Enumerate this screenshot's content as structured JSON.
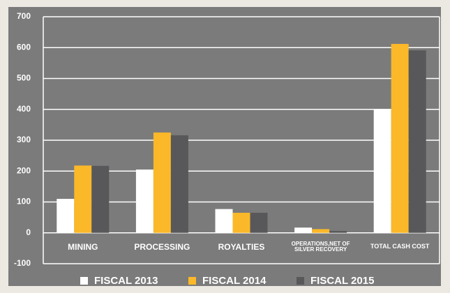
{
  "chart_data": {
    "type": "bar",
    "categories": [
      "MINING",
      "PROCESSING",
      "ROYALTIES",
      "OPERATIONS,NET OF SILVER RECOVERY",
      "TOTAL CASH COST"
    ],
    "series": [
      {
        "name": "FISCAL 2013",
        "color": "#ffffff",
        "values": [
          110,
          205,
          77,
          17,
          400
        ]
      },
      {
        "name": "FISCAL 2014",
        "color": "#fbb829",
        "values": [
          218,
          325,
          65,
          12,
          612
        ]
      },
      {
        "name": "FISCAL 2015",
        "color": "#58585a",
        "values": [
          217,
          316,
          65,
          6,
          591
        ]
      }
    ],
    "ylim": [
      -100,
      700
    ],
    "yticks": [
      -100,
      0,
      100,
      200,
      300,
      400,
      500,
      600,
      700
    ],
    "grid": true,
    "legend": "bottom"
  }
}
